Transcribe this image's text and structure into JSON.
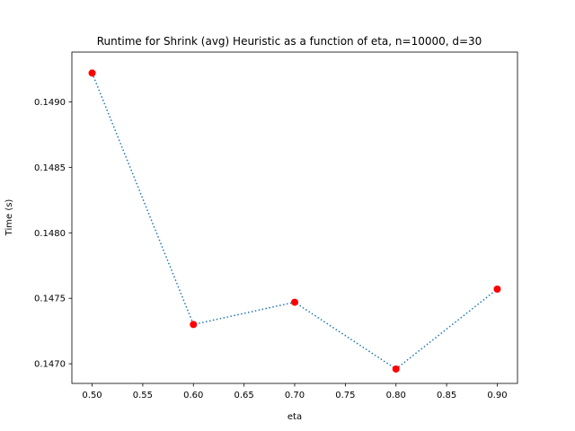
{
  "chart_data": {
    "type": "line",
    "title": "Runtime for Shrink (avg) Heuristic as a function of eta, n=10000, d=30",
    "xlabel": "eta",
    "ylabel": "Time (s)",
    "x": [
      0.5,
      0.6,
      0.7,
      0.8,
      0.9
    ],
    "series": [
      {
        "values": [
          0.14922,
          0.1473,
          0.14747,
          0.14696,
          0.14757
        ],
        "line_color": "#1f77b4",
        "line_style": "dotted",
        "marker_color": "#ff0000",
        "marker": "circle"
      }
    ],
    "xlim": [
      0.48,
      0.92
    ],
    "ylim": [
      0.14685,
      0.14938
    ],
    "xticks": [
      0.5,
      0.55,
      0.6,
      0.65,
      0.7,
      0.75,
      0.8,
      0.85,
      0.9
    ],
    "xtick_labels": [
      "0.50",
      "0.55",
      "0.60",
      "0.65",
      "0.70",
      "0.75",
      "0.80",
      "0.85",
      "0.90"
    ],
    "yticks": [
      0.147,
      0.1475,
      0.148,
      0.1485,
      0.149
    ],
    "ytick_labels": [
      "0.1470",
      "0.1475",
      "0.1480",
      "0.1485",
      "0.1490"
    ],
    "grid": false,
    "legend": false
  }
}
